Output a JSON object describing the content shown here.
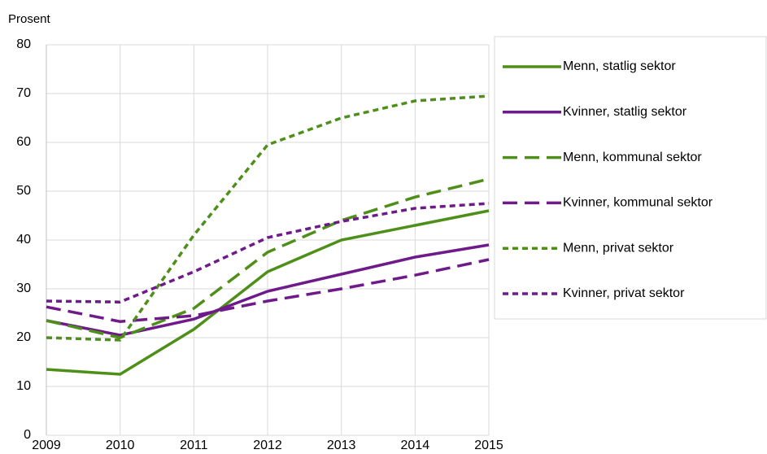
{
  "chart_data": {
    "type": "line",
    "y_label": "Prosent",
    "x": [
      2009,
      2010,
      2011,
      2012,
      2013,
      2014,
      2015
    ],
    "xlim": [
      2009,
      2015
    ],
    "xticks": [
      2009,
      2010,
      2011,
      2012,
      2013,
      2014,
      2015
    ],
    "ylim": [
      0,
      80
    ],
    "yticks": [
      0,
      10,
      20,
      30,
      40,
      50,
      60,
      70,
      80
    ],
    "grid": true,
    "legend": "right",
    "series": [
      {
        "name": "Menn, statlig sektor",
        "color": "#4e8f1a",
        "style": "solid",
        "values": [
          13.5,
          12.5,
          21.7,
          33.5,
          40,
          43,
          46
        ]
      },
      {
        "name": "Kvinner, statlig sektor",
        "color": "#6f1a8a",
        "style": "solid",
        "values": [
          23.5,
          20.5,
          23.8,
          29.5,
          33,
          36.5,
          39
        ]
      },
      {
        "name": "Menn, kommunal sektor",
        "color": "#4e8f1a",
        "style": "dashed",
        "values": [
          23.5,
          20,
          26,
          37.5,
          44,
          48.8,
          52.5
        ]
      },
      {
        "name": "Kvinner, kommunal sektor",
        "color": "#6f1a8a",
        "style": "dashed",
        "values": [
          26.3,
          23.3,
          24.5,
          27.5,
          30,
          32.8,
          36
        ]
      },
      {
        "name": "Menn, privat sektor",
        "color": "#4e8f1a",
        "style": "dotted",
        "values": [
          20,
          19.5,
          41,
          59.5,
          65,
          68.5,
          69.5
        ]
      },
      {
        "name": "Kvinner, privat sektor",
        "color": "#6f1a8a",
        "style": "dotted",
        "values": [
          27.5,
          27.3,
          33.5,
          40.5,
          43.8,
          46.5,
          47.5
        ]
      }
    ]
  }
}
